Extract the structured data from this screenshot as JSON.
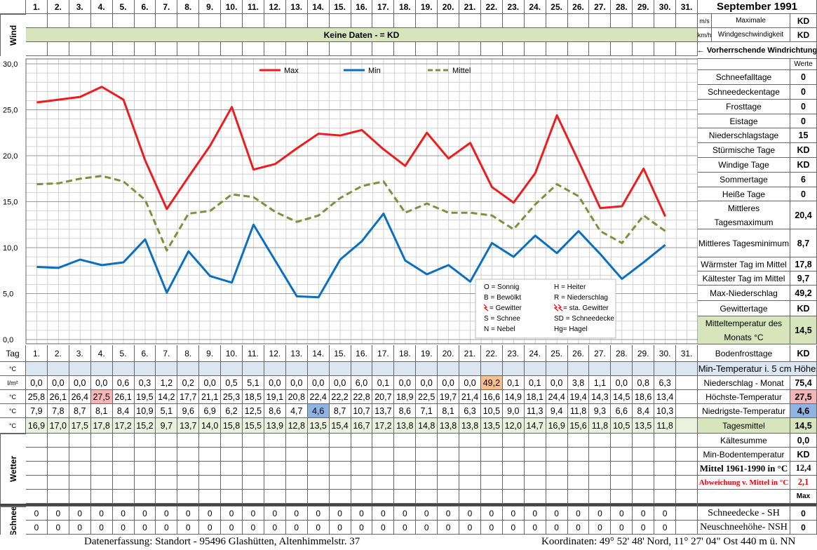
{
  "header": {
    "month": "September 1991"
  },
  "wind": {
    "label": "Wind",
    "units": [
      "m/s",
      "km/h"
    ],
    "title": [
      "Maximale",
      "Windgeschwindigkeit"
    ],
    "values": [
      "KD",
      "KD"
    ],
    "banner": "Keine Daten -  = KD",
    "direction": "← Vorherrschende Windrichtung"
  },
  "chart_data": {
    "type": "line",
    "categories": [
      "1.",
      "2.",
      "3.",
      "4.",
      "5.",
      "6.",
      "7.",
      "8.",
      "9.",
      "10.",
      "11.",
      "12.",
      "13.",
      "14.",
      "15.",
      "16.",
      "17.",
      "18.",
      "19.",
      "20.",
      "21.",
      "22.",
      "23.",
      "24.",
      "25.",
      "26.",
      "27.",
      "28.",
      "29.",
      "30.",
      "31."
    ],
    "series": [
      {
        "name": "Max",
        "color": "#ee1c1c",
        "dashed": false,
        "values": [
          25.8,
          26.1,
          26.4,
          27.5,
          26.1,
          19.5,
          14.2,
          17.7,
          21.1,
          25.3,
          18.5,
          19.1,
          20.8,
          22.4,
          22.2,
          22.8,
          20.7,
          18.9,
          22.5,
          19.7,
          21.4,
          16.6,
          14.9,
          18.1,
          24.4,
          19.4,
          14.3,
          14.5,
          18.6,
          13.4,
          null
        ],
        "value_labels": [
          "25,8",
          "26,1",
          "26,4",
          "27,5",
          "26,1",
          "19,5",
          "14,2",
          "17,7",
          "21,1",
          "25,3",
          "18,5",
          "19,1",
          "20,8",
          "22,4",
          "22,2",
          "22,8",
          "20,7",
          "18,9",
          "22,5",
          "19,7",
          "21,4",
          "16,6",
          "14,9",
          "18,1",
          "24,4",
          "19,4",
          "14,3",
          "14,5",
          "18,6",
          "13,4",
          null
        ]
      },
      {
        "name": "Min",
        "color": "#0b6fc0",
        "dashed": false,
        "values": [
          7.9,
          7.8,
          8.7,
          8.1,
          8.4,
          10.9,
          5.1,
          9.6,
          6.9,
          6.2,
          12.5,
          8.6,
          4.7,
          4.6,
          8.7,
          10.7,
          13.7,
          8.6,
          7.1,
          8.1,
          6.3,
          10.5,
          9.0,
          11.3,
          9.4,
          11.8,
          9.3,
          6.6,
          8.4,
          10.3,
          null
        ],
        "value_labels": [
          "7,9",
          "7,8",
          "8,7",
          "8,1",
          "8,4",
          "10,9",
          "5,1",
          "9,6",
          "6,9",
          "6,2",
          "12,5",
          "8,6",
          "4,7",
          "4,6",
          "8,7",
          "10,7",
          "13,7",
          "8,6",
          "7,1",
          "8,1",
          "6,3",
          "10,5",
          "9,0",
          "11,3",
          "9,4",
          "11,8",
          "9,3",
          "6,6",
          "8,4",
          "10,3",
          null
        ]
      },
      {
        "name": "Mittel",
        "color": "#77933c",
        "dashed": true,
        "values": [
          16.9,
          17.0,
          17.5,
          17.8,
          17.2,
          15.2,
          9.7,
          13.7,
          14.0,
          15.8,
          15.5,
          13.9,
          12.8,
          13.5,
          15.4,
          16.7,
          17.2,
          13.8,
          14.8,
          13.8,
          13.8,
          13.5,
          12.0,
          14.7,
          16.9,
          15.6,
          11.8,
          10.5,
          13.5,
          11.8,
          null
        ],
        "value_labels": [
          "16,9",
          "17,0",
          "17,5",
          "17,8",
          "17,2",
          "15,2",
          "9,7",
          "13,7",
          "14,0",
          "15,8",
          "15,5",
          "13,9",
          "12,8",
          "13,5",
          "15,4",
          "16,7",
          "17,2",
          "13,8",
          "14,8",
          "13,8",
          "13,8",
          "13,5",
          "12,0",
          "14,7",
          "16,9",
          "15,6",
          "11,8",
          "10,5",
          "13,5",
          "11,8",
          null
        ]
      }
    ],
    "ylim": [
      0,
      30
    ],
    "yticks": [
      {
        "value": 0,
        "label": "0,0"
      },
      {
        "value": 5,
        "label": "5,0"
      },
      {
        "value": 10,
        "label": "10,0"
      },
      {
        "value": 15,
        "label": "15,0"
      },
      {
        "value": 20,
        "label": "20,0"
      },
      {
        "value": 25,
        "label": "25,0"
      },
      {
        "value": 30,
        "label": "30,0"
      }
    ],
    "grid": true,
    "legend": "top"
  },
  "weather_legend": [
    "O = Sonnig",
    "H = Heiter",
    "B = Bewölkt",
    "R = Niederschlag",
    "= Gewitter",
    "= sta. Gewitter",
    "S = Schnee",
    "SD = Schneedecke",
    "N = Nebel",
    "Hg= Hagel"
  ],
  "table": {
    "day_label": "Tag",
    "units": [
      "°C",
      "l/m²",
      "°C",
      "°C",
      "°C"
    ],
    "precipitation": {
      "values": [
        0.0,
        0.0,
        0.0,
        0.0,
        0.6,
        0.3,
        1.2,
        0.2,
        0.0,
        0.5,
        5.1,
        0.0,
        0.0,
        0.0,
        0.0,
        6.0,
        0.1,
        0.0,
        0.0,
        0.0,
        0.0,
        49.2,
        0.1,
        0.1,
        0.0,
        3.8,
        1.1,
        0.0,
        0.8,
        6.3
      ],
      "value_labels": [
        "0,0",
        "0,0",
        "0,0",
        "0,0",
        "0,6",
        "0,3",
        "1,2",
        "0,2",
        "0,0",
        "0,5",
        "5,1",
        "0,0",
        "0,0",
        "0,0",
        "0,0",
        "6,0",
        "0,1",
        "0,0",
        "0,0",
        "0,0",
        "0,0",
        "49,2",
        "0,1",
        "0,1",
        "0,0",
        "3,8",
        "1,1",
        "0,0",
        "0,8",
        "6,3"
      ]
    },
    "weather_label": "Wetter",
    "snow_label": "Schnee",
    "snow_rows": [
      [
        0,
        0,
        0,
        0,
        0,
        0,
        0,
        0,
        0,
        0,
        0,
        0,
        0,
        0,
        0,
        0,
        0,
        0,
        0,
        0,
        0,
        0,
        0,
        0,
        0,
        0,
        0,
        0,
        0,
        0
      ],
      [
        0,
        0,
        0,
        0,
        0,
        0,
        0,
        0,
        0,
        0,
        0,
        0,
        0,
        0,
        0,
        0,
        0,
        0,
        0,
        0,
        0,
        0,
        0,
        0,
        0,
        0,
        0,
        0,
        0,
        0
      ]
    ]
  },
  "stats": {
    "header": "Werte",
    "rows": [
      {
        "label": "Schneefalltage",
        "value": "0"
      },
      {
        "label": "Schneedeckentage",
        "value": "0"
      },
      {
        "label": "Frosttage",
        "value": "0"
      },
      {
        "label": "Eistage",
        "value": "0"
      },
      {
        "label": "Niederschlagstage",
        "value": "15"
      },
      {
        "label": "Stürmische Tage",
        "value": "KD"
      },
      {
        "label": "Windige Tage",
        "value": "KD"
      },
      {
        "label": "Sommertage",
        "value": "6"
      },
      {
        "label": "Heiße Tage",
        "value": "0"
      },
      {
        "label": "Mittleres Tagesmaximum",
        "value": "20,4"
      },
      {
        "label": "Mittleres Tagesminimum",
        "value": "8,7"
      },
      {
        "label": "Wärmster Tag im Mittel",
        "value": "17,8"
      },
      {
        "label": "Kältester Tag im Mittel",
        "value": "9,7"
      },
      {
        "label": "Max-Niederschlag",
        "value": "49,2"
      },
      {
        "label": "Gewittertage",
        "value": "KD"
      },
      {
        "label": "Mitteltemperatur des Monats °C",
        "value": "14,5"
      },
      {
        "label": "Bodenfrosttage",
        "value": "KD"
      }
    ],
    "lower_header": "Min-Temperatur i. 5 cm Höhe",
    "lower_rows": [
      {
        "label": "Niederschlag - Monat",
        "value": "75,4"
      },
      {
        "label": "Höchste-Temperatur",
        "value": "27,5"
      },
      {
        "label": "Niedrigste-Temperatur",
        "value": "4,6"
      },
      {
        "label": "Tagesmittel",
        "value": "14,5"
      },
      {
        "label": "Kältesumme",
        "value": "0,0"
      },
      {
        "label": "Min-Bodentemperatur",
        "value": "KD"
      },
      {
        "label": "Mittel 1961-1990 in °C",
        "value": "12,4"
      },
      {
        "label": "Abweichung v. Mittel in °C",
        "value": "2,1"
      }
    ],
    "max_label": "Max",
    "snow_rows": [
      {
        "label": "Schneedecke -  SH",
        "value": "0"
      },
      {
        "label": "Neuschneehöhe- NSH",
        "value": "0"
      }
    ]
  },
  "footer": {
    "left": "Datenerfassung:  Standort -  95496  Glashütten, Altenhimmelstr. 37",
    "right": "Koordinaten:  49° 52' 48' Nord,  11° 27' 04\" Ost   440 m ü. NN"
  }
}
